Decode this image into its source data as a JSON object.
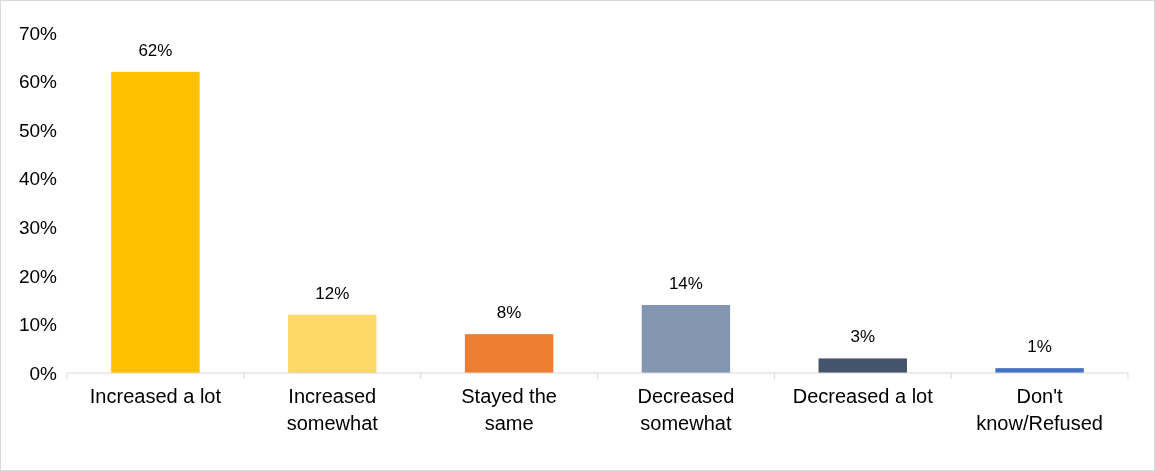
{
  "chart_data": {
    "type": "bar",
    "categories": [
      "Increased a lot",
      "Increased somewhat",
      "Stayed the same",
      "Decreased somewhat",
      "Decreased a lot",
      "Don't know/Refused"
    ],
    "values": [
      62,
      12,
      8,
      14,
      3,
      1
    ],
    "colors": [
      "#ffc000",
      "#ffd966",
      "#ed7d31",
      "#8497b0",
      "#44546a",
      "#4472c4"
    ],
    "value_labels": [
      "62%",
      "12%",
      "8%",
      "14%",
      "3%",
      "1%"
    ],
    "ylim": [
      0,
      70
    ],
    "yticks": [
      {
        "value": 0,
        "label": "0%"
      },
      {
        "value": 10,
        "label": "10%"
      },
      {
        "value": 20,
        "label": "20%"
      },
      {
        "value": 30,
        "label": "30%"
      },
      {
        "value": 40,
        "label": "40%"
      },
      {
        "value": 50,
        "label": "50%"
      },
      {
        "value": 60,
        "label": "60%"
      },
      {
        "value": 70,
        "label": "70%"
      }
    ],
    "grid": false
  }
}
